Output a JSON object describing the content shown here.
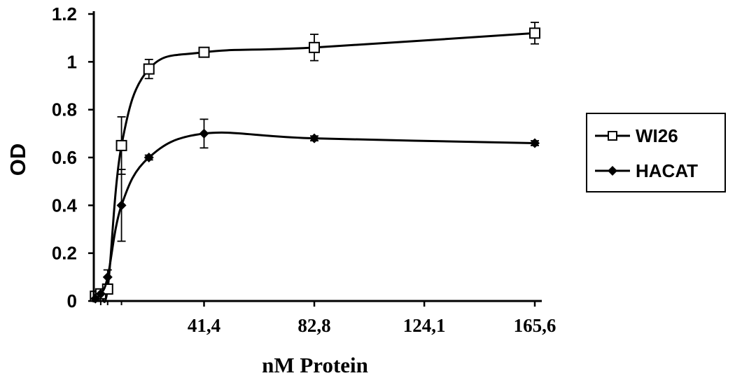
{
  "chart_data": {
    "type": "line",
    "title": "",
    "xlabel": "nM Protein",
    "ylabel": "OD",
    "xlim": [
      0,
      165.6
    ],
    "ylim": [
      0,
      1.2
    ],
    "x_ticks": [
      {
        "value": 41.4,
        "label": "41,4"
      },
      {
        "value": 82.8,
        "label": "82,8"
      },
      {
        "value": 124.1,
        "label": "124,1"
      },
      {
        "value": 165.6,
        "label": "165,6"
      }
    ],
    "y_ticks": [
      {
        "value": 0,
        "label": "0"
      },
      {
        "value": 0.2,
        "label": "0.2"
      },
      {
        "value": 0.4,
        "label": "0.4"
      },
      {
        "value": 0.6,
        "label": "0.6"
      },
      {
        "value": 0.8,
        "label": "0.8"
      },
      {
        "value": 1.0,
        "label": "1"
      },
      {
        "value": 1.2,
        "label": "1.2"
      }
    ],
    "grid": false,
    "legend_position": "right",
    "series": [
      {
        "name": "WI26",
        "marker": "open-square",
        "color": "#000000",
        "x": [
          0.6,
          2.6,
          5.2,
          10.4,
          20.7,
          41.4,
          82.8,
          165.6
        ],
        "y": [
          0.02,
          0.03,
          0.05,
          0.65,
          0.97,
          1.04,
          1.06,
          1.12
        ],
        "error": [
          0,
          0,
          0,
          0.12,
          0.04,
          0.015,
          0.055,
          0.045
        ]
      },
      {
        "name": "HACAT",
        "marker": "filled-diamond",
        "color": "#000000",
        "x": [
          0.6,
          2.6,
          5.2,
          10.4,
          20.7,
          41.4,
          82.8,
          165.6
        ],
        "y": [
          0.01,
          0.03,
          0.1,
          0.4,
          0.6,
          0.7,
          0.68,
          0.66
        ],
        "error": [
          0,
          0,
          0.03,
          0.15,
          0.01,
          0.06,
          0.01,
          0.01
        ]
      }
    ]
  }
}
